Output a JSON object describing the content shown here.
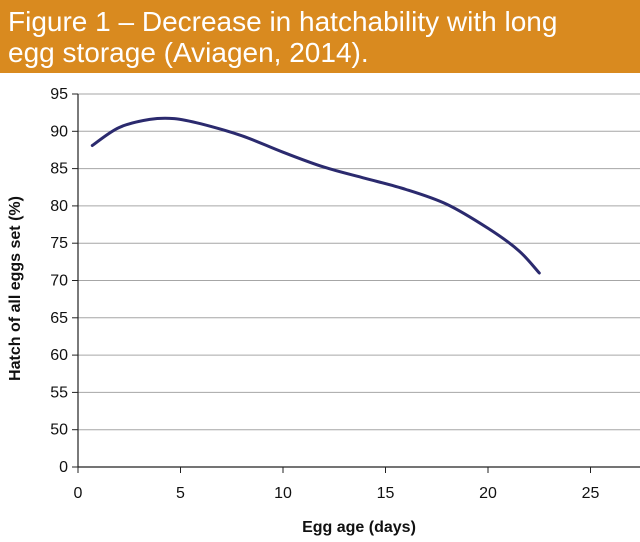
{
  "chart_data": {
    "type": "line",
    "title_lines": [
      "Figure 1 – Decrease in hatchability with long",
      "egg storage (Aviagen, 2014)."
    ],
    "xlabel": "Egg age (days)",
    "ylabel": "Hatch of all eggs set (%)",
    "xlim": [
      0,
      27
    ],
    "ylim": [
      0,
      95
    ],
    "y_axis_break": true,
    "x_ticks": [
      0,
      5,
      10,
      15,
      20,
      25
    ],
    "x_tick_labels": [
      "0",
      "5",
      "10",
      "15",
      "20",
      "25"
    ],
    "y_tick_labels": [
      "0",
      "50",
      "55",
      "60",
      "65",
      "70",
      "75",
      "80",
      "85",
      "90",
      "95"
    ],
    "y_tick_values": [
      0,
      50,
      55,
      60,
      65,
      70,
      75,
      80,
      85,
      90,
      95
    ],
    "grid": true,
    "series": [
      {
        "color": "#2b2a6e",
        "points": [
          [
            0.7,
            88.1
          ],
          [
            2.0,
            90.5
          ],
          [
            3.5,
            91.6
          ],
          [
            4.7,
            91.7
          ],
          [
            6.0,
            91.0
          ],
          [
            8.0,
            89.4
          ],
          [
            10.0,
            87.2
          ],
          [
            12.0,
            85.2
          ],
          [
            14.0,
            83.7
          ],
          [
            16.0,
            82.2
          ],
          [
            18.0,
            80.2
          ],
          [
            20.0,
            77.0
          ],
          [
            21.5,
            74.0
          ],
          [
            22.5,
            71.0
          ]
        ]
      }
    ]
  },
  "colors": {
    "banner": "#d98a1f",
    "grid": "#a6a6a6",
    "axis": "#222222",
    "line": "#2b2a6e"
  }
}
